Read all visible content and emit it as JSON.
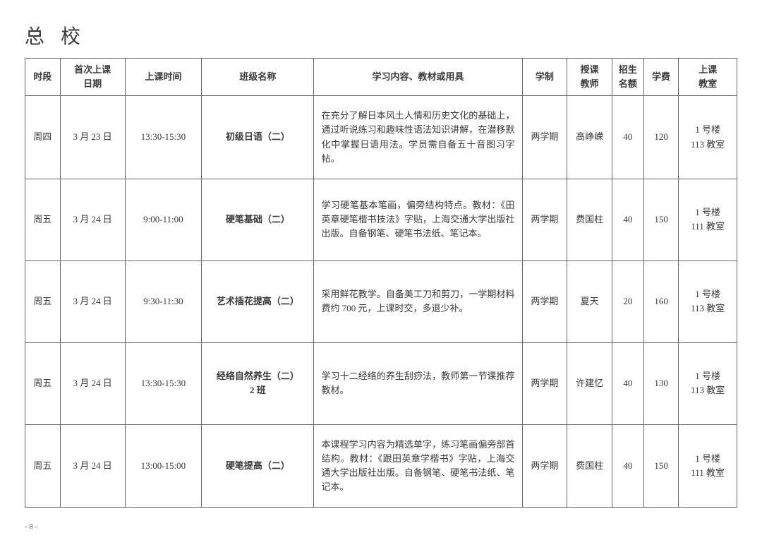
{
  "page_title": "总 校",
  "page_number": "- 8 -",
  "table": {
    "headers": {
      "day": "时段",
      "date": "首次上课\n日期",
      "time": "上课时间",
      "class": "班级名称",
      "content": "学习内容、教材或用具",
      "term": "学制",
      "teacher": "授课\n教师",
      "quota": "招生\n名额",
      "fee": "学费",
      "room": "上课\n教室"
    },
    "rows": [
      {
        "day": "周四",
        "date": "3 月 23 日",
        "time": "13:30-15:30",
        "class": "初级日语（二）",
        "content": "在充分了解日本风土人情和历史文化的基础上，通过听说练习和趣味性语法知识讲解，在潜移默化中掌握日语用法。学员需自备五十音图习字帖。",
        "term": "两学期",
        "teacher": "高峥嵘",
        "quota": "40",
        "fee": "120",
        "room": "1 号楼\n113 教室"
      },
      {
        "day": "周五",
        "date": "3 月 24 日",
        "time": "9:00-11:00",
        "class": "硬笔基础（二）",
        "content": "学习硬笔基本笔画，偏旁结构特点。教材：《田英章硬笔楷书技法》字贴，上海交通大学出版社出版。自备钢笔、硬笔书法纸、笔记本。",
        "term": "两学期",
        "teacher": "费国柱",
        "quota": "40",
        "fee": "150",
        "room": "1 号楼\n111 教室"
      },
      {
        "day": "周五",
        "date": "3 月 24 日",
        "time": "9:30-11:30",
        "class": "艺术插花提高（二）",
        "content": "采用鲜花教学。自备美工刀和剪刀，一学期材料费约 700 元，上课时交，多退少补。",
        "term": "两学期",
        "teacher": "夏天",
        "quota": "20",
        "fee": "160",
        "room": "1 号楼\n113 教室"
      },
      {
        "day": "周五",
        "date": "3 月 24 日",
        "time": "13:30-15:30",
        "class": "经络自然养生（二）\n2 班",
        "content": "学习十二经络的养生刮痧法，教师第一节课推荐教材。",
        "term": "两学期",
        "teacher": "许建忆",
        "quota": "40",
        "fee": "130",
        "room": "1 号楼\n113 教室"
      },
      {
        "day": "周五",
        "date": "3 月 24 日",
        "time": "13:00-15:00",
        "class": "硬笔提高（二）",
        "content": "本课程学习内容为精选单字，练习笔画偏旁部首结构。教材：《跟田英章学楷书》字贴，上海交通大学出版社出版。自备钢笔、硬笔书法纸、笔记本。",
        "term": "两学期",
        "teacher": "费国柱",
        "quota": "40",
        "fee": "150",
        "room": "1 号楼\n111 教室"
      }
    ]
  }
}
